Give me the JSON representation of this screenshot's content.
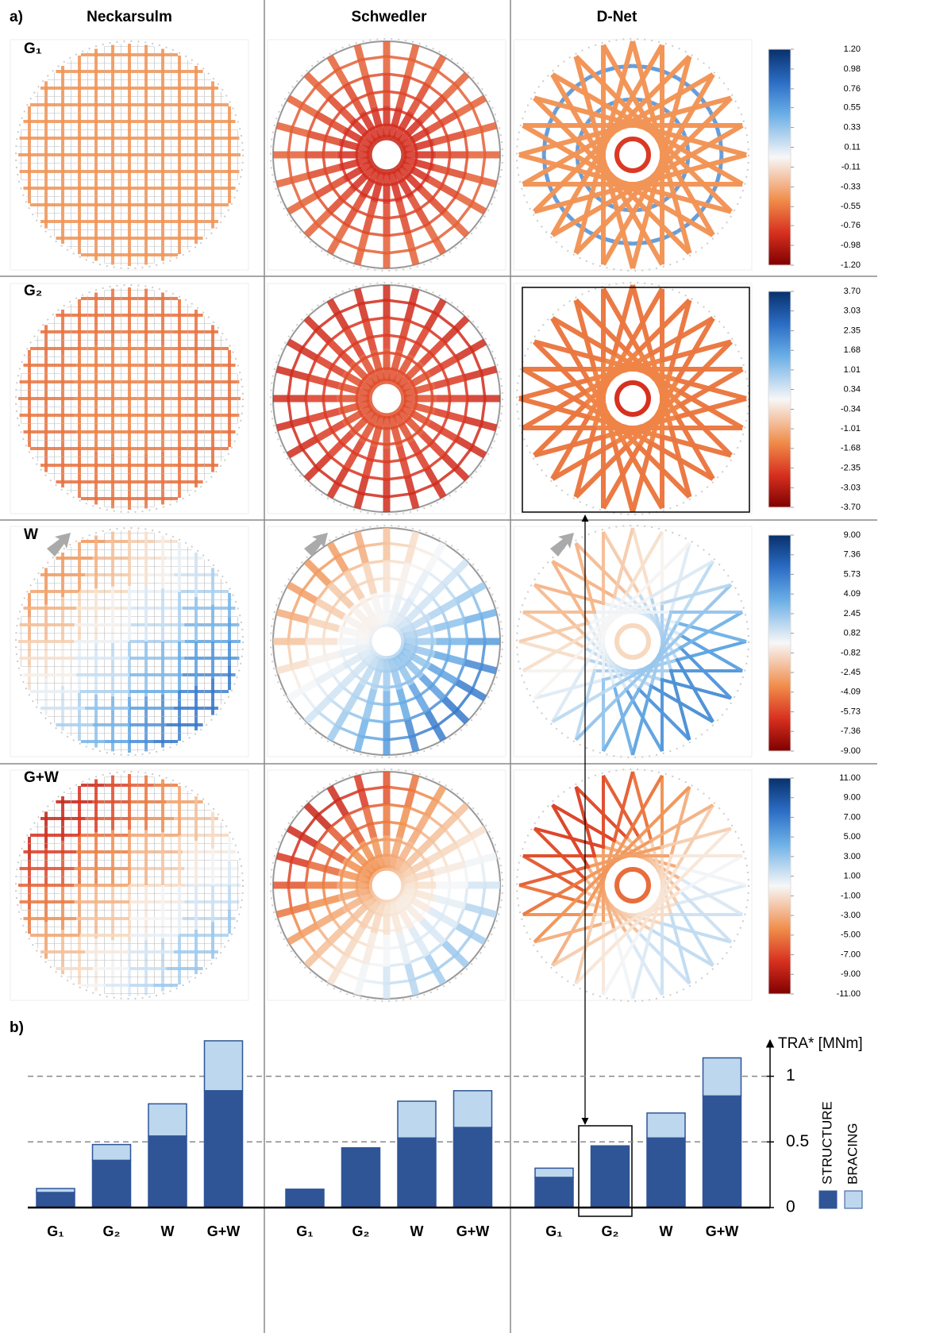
{
  "panel_a": {
    "label": "a)",
    "columns": [
      "Neckarsulm",
      "Schwedler",
      "D-Net"
    ],
    "rows": [
      {
        "label": "G₁",
        "colorbar": {
          "lim": [
            -1.2,
            1.2
          ],
          "ticks": [
            {
              "value": 1.2,
              "label": "1.20"
            },
            0.98,
            0.76,
            0.55,
            0.33,
            0.11,
            -0.11,
            -0.33,
            -0.55,
            -0.76,
            -0.98,
            {
              "value": -1.2,
              "label": "-1.20"
            }
          ]
        }
      },
      {
        "label": "G₂",
        "colorbar": {
          "lim": [
            -3.7,
            3.7
          ],
          "ticks": [
            {
              "value": 3.7,
              "label": "3.70"
            },
            3.03,
            2.35,
            1.68,
            1.01,
            0.34,
            -0.34,
            -1.01,
            -1.68,
            -2.35,
            -3.03,
            {
              "value": -3.7,
              "label": "-3.70"
            }
          ]
        }
      },
      {
        "label": "W",
        "colorbar": {
          "lim": [
            -9,
            9
          ],
          "ticks": [
            {
              "value": 9,
              "label": "9.00"
            },
            7.36,
            5.73,
            4.09,
            2.45,
            0.82,
            -0.82,
            -2.45,
            -4.09,
            -5.73,
            -7.36,
            {
              "value": -9,
              "label": "-9.00"
            }
          ]
        }
      },
      {
        "label": "G+W",
        "colorbar": {
          "lim": [
            -11,
            11
          ],
          "ticks": [
            {
              "value": 11,
              "label": "11.00"
            },
            {
              "value": 9,
              "label": "9.00"
            },
            {
              "value": 7,
              "label": "7.00"
            },
            {
              "value": 5,
              "label": "5.00"
            },
            {
              "value": 3,
              "label": "3.00"
            },
            {
              "value": 1,
              "label": "1.00"
            },
            {
              "value": -1,
              "label": "-1.00"
            },
            {
              "value": -3,
              "label": "-3.00"
            },
            {
              "value": -5,
              "label": "-5.00"
            },
            {
              "value": -7,
              "label": "-7.00"
            },
            {
              "value": -9,
              "label": "-9.00"
            },
            {
              "value": -11,
              "label": "-11.00"
            }
          ]
        }
      }
    ]
  },
  "chart_data": {
    "type": "bar",
    "stacked": true,
    "label": "b)",
    "categories": [
      "G₁",
      "G₂",
      "W",
      "G+W",
      "G₁",
      "G₂",
      "W",
      "G+W",
      "G₁",
      "G₂",
      "W",
      "G+W"
    ],
    "series": [
      {
        "name": "STRUCTURE",
        "color": "#2f5597",
        "values": [
          0.115,
          0.36,
          0.545,
          0.89,
          0.14,
          0.455,
          0.53,
          0.61,
          0.23,
          0.47,
          0.53,
          0.85
        ]
      },
      {
        "name": "BRACING",
        "color": "#bdd7ee",
        "values": [
          0.03,
          0.12,
          0.245,
          0.38,
          0,
          0,
          0.28,
          0.28,
          0.07,
          0,
          0.19,
          0.29
        ]
      }
    ],
    "ylim": [
      0,
      1.3
    ],
    "yticks": [
      0,
      0.5,
      1
    ],
    "ylabel": "TRA* [MNm]",
    "grid": true
  }
}
